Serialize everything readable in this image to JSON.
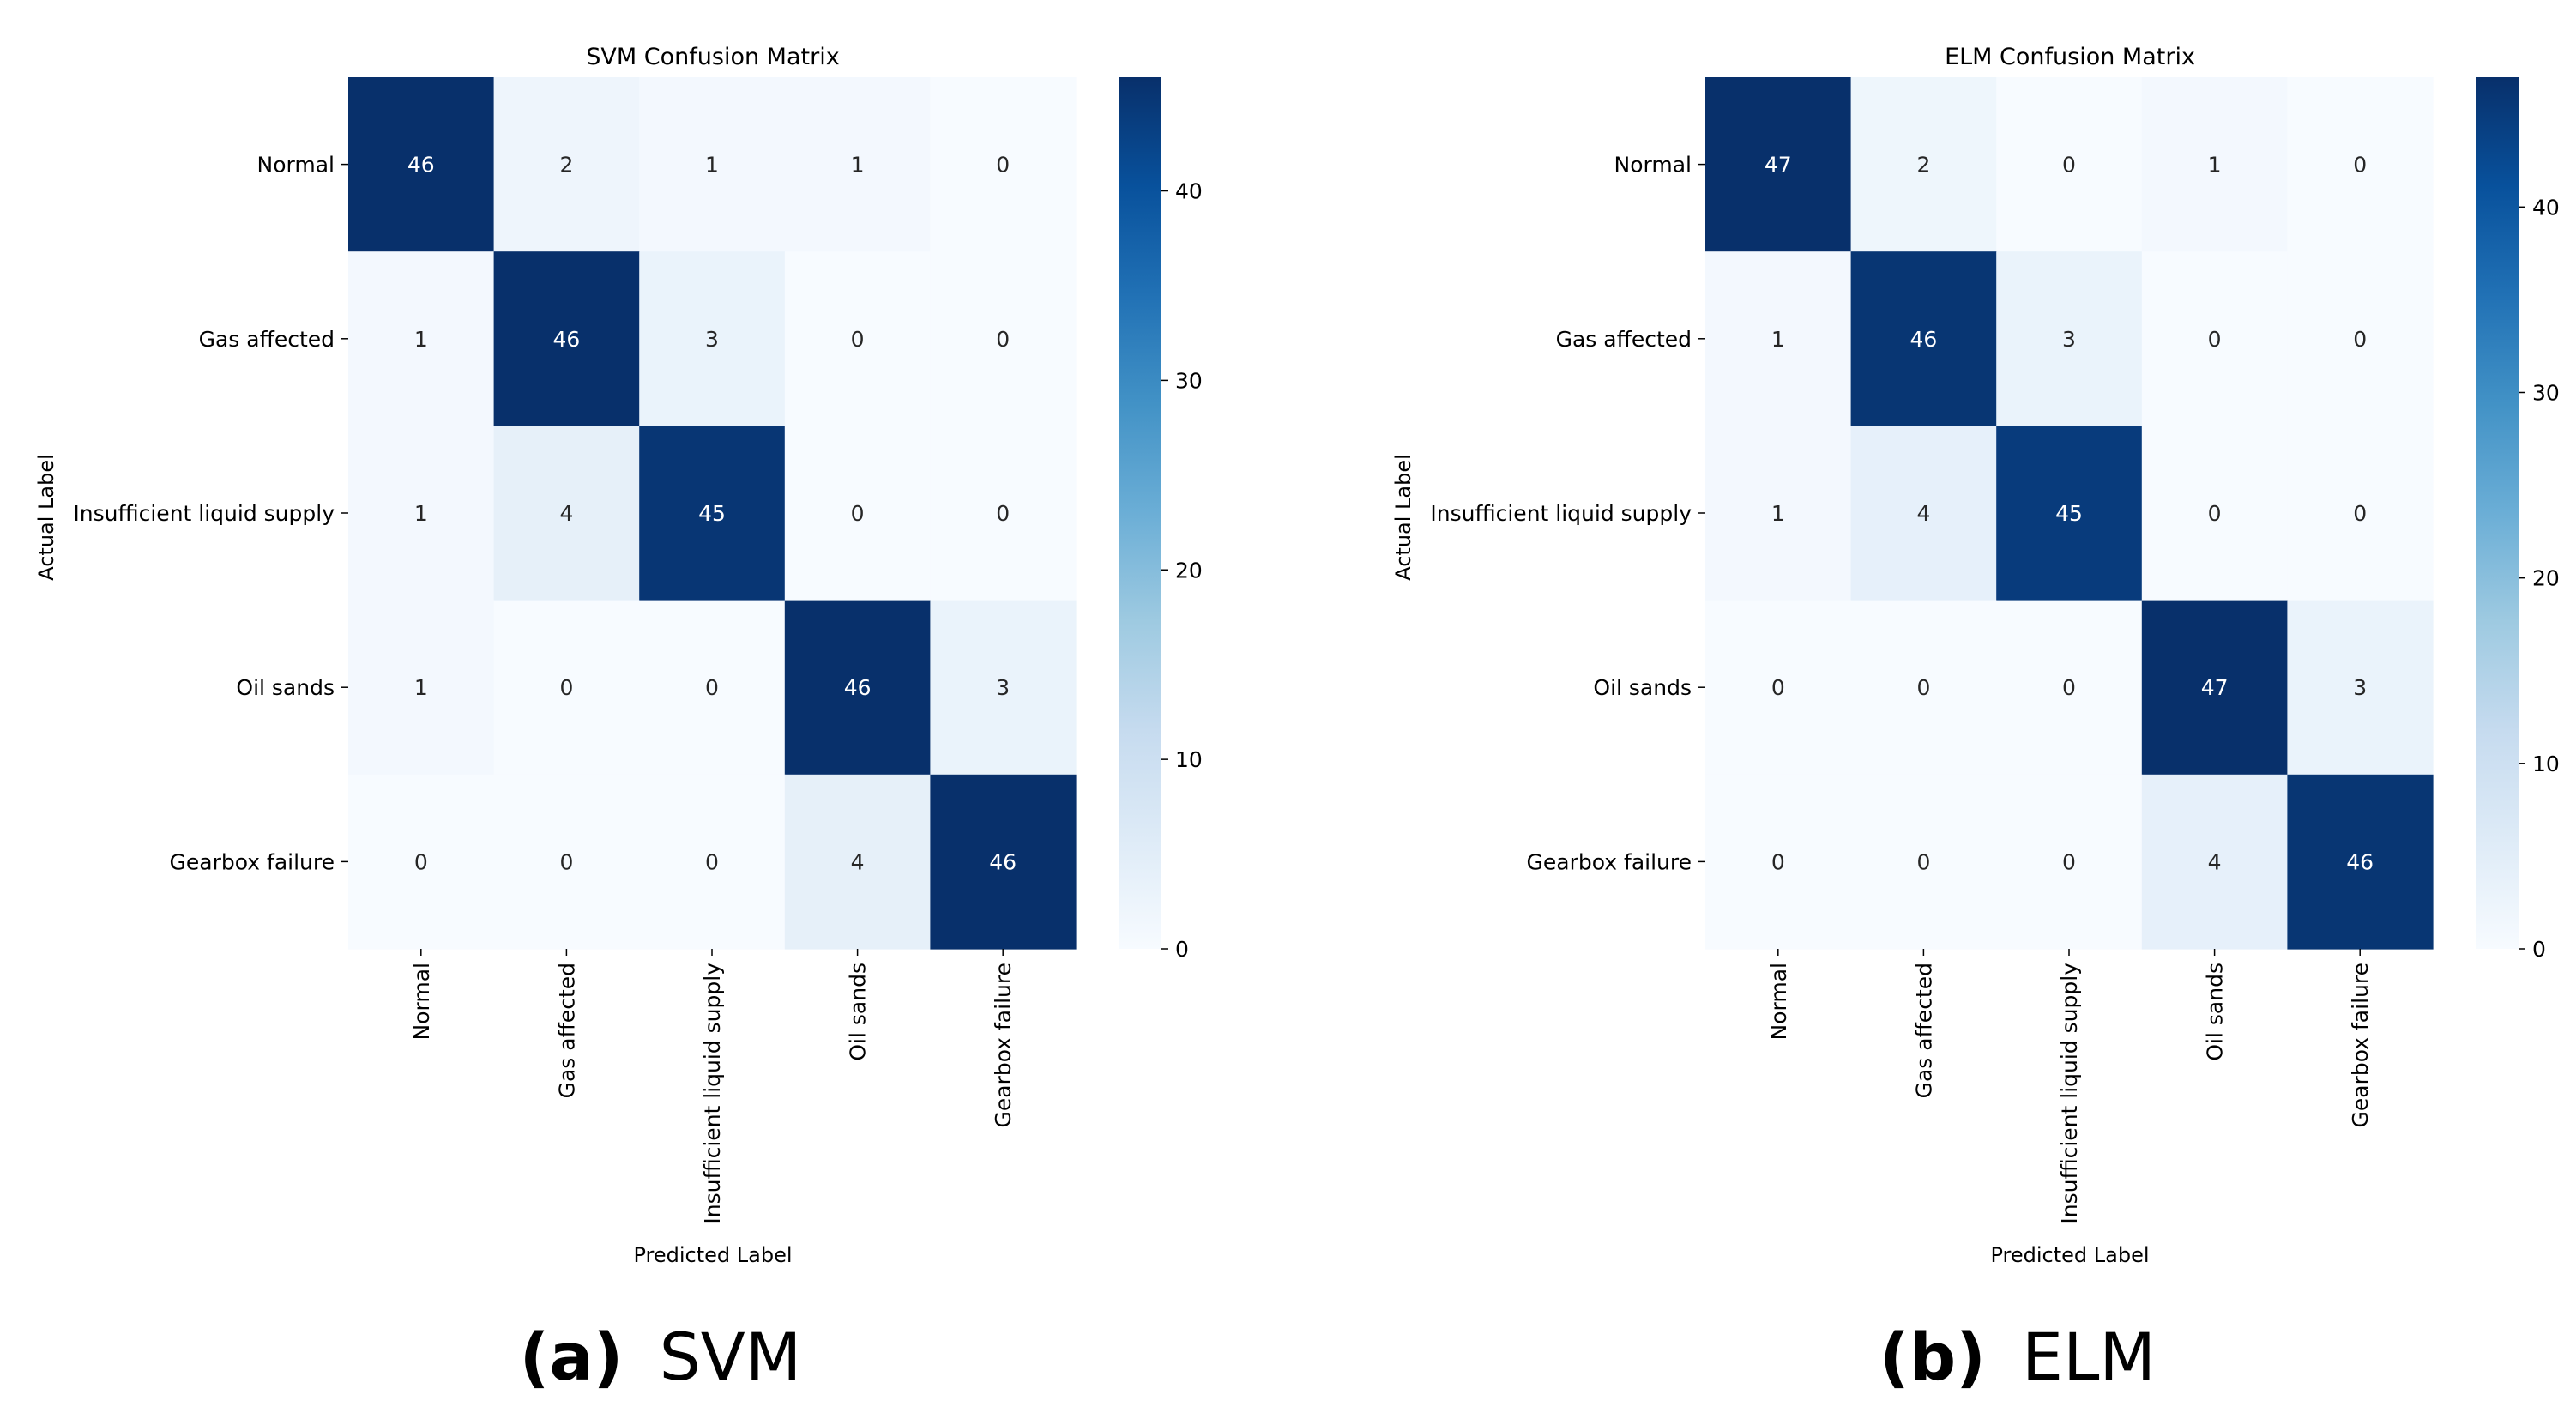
{
  "chart_data": [
    {
      "type": "heatmap",
      "title": "SVM Confusion Matrix",
      "xlabel": "Predicted Label",
      "ylabel": "Actual Label",
      "x_categories": [
        "Normal",
        "Gas affected",
        "Insufficient liquid supply",
        "Oil sands",
        "Gearbox failure"
      ],
      "y_categories": [
        "Normal",
        "Gas affected",
        "Insufficient liquid supply",
        "Oil sands",
        "Gearbox failure"
      ],
      "values": [
        [
          46,
          2,
          1,
          1,
          0
        ],
        [
          1,
          46,
          3,
          0,
          0
        ],
        [
          1,
          4,
          45,
          0,
          0
        ],
        [
          1,
          0,
          0,
          46,
          3
        ],
        [
          0,
          0,
          0,
          4,
          46
        ]
      ],
      "colormap": "Blues",
      "vmin": 0,
      "vmax": 46,
      "colorbar_ticks": [
        0,
        10,
        20,
        30,
        40
      ],
      "caption": {
        "letter": "(a)",
        "text": "SVM"
      }
    },
    {
      "type": "heatmap",
      "title": "ELM Confusion Matrix",
      "xlabel": "Predicted Label",
      "ylabel": "Actual Label",
      "x_categories": [
        "Normal",
        "Gas affected",
        "Insufficient liquid supply",
        "Oil sands",
        "Gearbox failure"
      ],
      "y_categories": [
        "Normal",
        "Gas affected",
        "Insufficient liquid supply",
        "Oil sands",
        "Gearbox failure"
      ],
      "values": [
        [
          47,
          2,
          0,
          1,
          0
        ],
        [
          1,
          46,
          3,
          0,
          0
        ],
        [
          1,
          4,
          45,
          0,
          0
        ],
        [
          0,
          0,
          0,
          47,
          3
        ],
        [
          0,
          0,
          0,
          4,
          46
        ]
      ],
      "colormap": "Blues",
      "vmin": 0,
      "vmax": 47,
      "colorbar_ticks": [
        0,
        10,
        20,
        30,
        40
      ],
      "caption": {
        "letter": "(b)",
        "text": "ELM"
      }
    }
  ]
}
